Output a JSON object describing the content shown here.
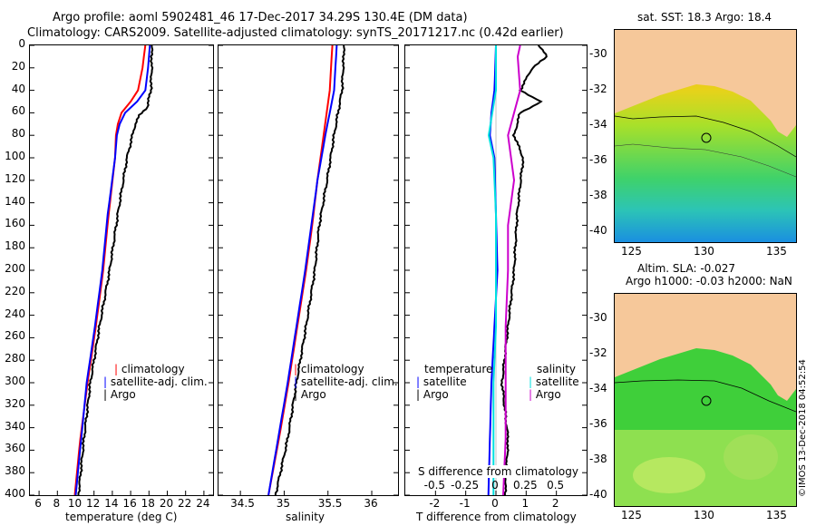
{
  "header": {
    "line1": "Argo profile: aoml 5902481_46 17-Dec-2017 34.29S 130.4E (DM data)",
    "line2": "Climatology: CARS2009. Satellite-adjusted climatology: synTS_20171217.nc (0.42d earlier)"
  },
  "colors": {
    "climatology": "#ff0000",
    "satellite": "#0000ff",
    "argo": "#000000",
    "sat_cyan": "#00e0e0",
    "argo_mag": "#cc00cc",
    "land": "#f6c89a"
  },
  "depth_ticks": [
    "0",
    "20",
    "40",
    "60",
    "80",
    "100",
    "120",
    "140",
    "160",
    "180",
    "200",
    "220",
    "240",
    "260",
    "280",
    "300",
    "320",
    "340",
    "360",
    "380",
    "400"
  ],
  "chart_data": [
    {
      "type": "line",
      "panel": "temperature",
      "xlabel": "temperature (deg C)",
      "ylabel": "depth",
      "xlim": [
        5,
        25
      ],
      "ylim": [
        400,
        0
      ],
      "x_ticks": [
        "6",
        "8",
        "10",
        "12",
        "14",
        "16",
        "18",
        "20",
        "22",
        "24"
      ],
      "legend": [
        "climatology",
        "satellite-adj. clim.",
        "Argo"
      ],
      "series": [
        {
          "name": "climatology",
          "depth": [
            0,
            20,
            40,
            50,
            60,
            70,
            80,
            100,
            150,
            200,
            250,
            300,
            350,
            400
          ],
          "values": [
            17.6,
            17.3,
            16.8,
            16.0,
            15.0,
            14.6,
            14.4,
            14.3,
            13.6,
            13.0,
            12.2,
            11.3,
            10.5,
            9.9
          ]
        },
        {
          "name": "satellite-adj. clim.",
          "depth": [
            0,
            20,
            40,
            50,
            60,
            70,
            80,
            100,
            150,
            200,
            250,
            300,
            350,
            400
          ],
          "values": [
            18.1,
            17.9,
            17.6,
            16.7,
            15.4,
            14.8,
            14.5,
            14.3,
            13.5,
            12.9,
            12.1,
            11.2,
            10.6,
            10.0
          ]
        },
        {
          "name": "Argo",
          "depth": [
            0,
            20,
            40,
            55,
            62,
            70,
            80,
            100,
            120,
            150,
            200,
            250,
            300,
            350,
            400
          ],
          "values": [
            18.3,
            18.3,
            18.2,
            17.8,
            17.0,
            16.5,
            16.2,
            15.6,
            15.2,
            14.6,
            13.7,
            12.6,
            11.6,
            10.9,
            10.3
          ]
        }
      ]
    },
    {
      "type": "line",
      "panel": "salinity",
      "xlabel": "salinity",
      "ylabel": "depth",
      "xlim": [
        34.25,
        36.3
      ],
      "ylim": [
        400,
        0
      ],
      "x_ticks": [
        "34.5",
        "35",
        "35.5",
        "36"
      ],
      "legend": [
        "climatology",
        "satellite-adj. clim.",
        "Argo"
      ],
      "series": [
        {
          "name": "climatology",
          "depth": [
            0,
            40,
            80,
            120,
            160,
            200,
            250,
            300,
            350,
            400
          ],
          "values": [
            35.55,
            35.52,
            35.45,
            35.38,
            35.32,
            35.25,
            35.15,
            35.05,
            34.94,
            34.82
          ]
        },
        {
          "name": "satellite-adj. clim.",
          "depth": [
            0,
            40,
            80,
            120,
            160,
            200,
            250,
            300,
            350,
            400
          ],
          "values": [
            35.6,
            35.57,
            35.47,
            35.38,
            35.31,
            35.24,
            35.14,
            35.04,
            34.93,
            34.82
          ]
        },
        {
          "name": "Argo",
          "depth": [
            0,
            10,
            40,
            80,
            120,
            160,
            200,
            250,
            300,
            350,
            400
          ],
          "values": [
            35.68,
            35.68,
            35.66,
            35.57,
            35.49,
            35.4,
            35.35,
            35.25,
            35.14,
            35.04,
            34.9
          ]
        }
      ]
    },
    {
      "type": "line",
      "panel": "difference",
      "xlabel": "T difference from climatology",
      "top_axis_label": "S difference from climatology",
      "ylabel": "depth",
      "xlim": [
        -3,
        3
      ],
      "ylim": [
        400,
        0
      ],
      "x_ticks": [
        "-2",
        "-1",
        "0",
        "1",
        "2"
      ],
      "s_ticks": [
        "-0.5",
        "-0.25",
        "0",
        "0.25",
        "0.5"
      ],
      "legend_temperature": {
        "title": "temperature",
        "items": [
          "satellite",
          "Argo"
        ]
      },
      "legend_salinity": {
        "title": "salinity",
        "items": [
          "satellite",
          "Argo"
        ]
      },
      "series": [
        {
          "name": "temperature satellite",
          "depth": [
            0,
            40,
            60,
            80,
            100,
            150,
            200,
            250,
            300,
            350,
            400
          ],
          "values": [
            0.0,
            -0.05,
            -0.15,
            -0.2,
            -0.05,
            0.0,
            0.05,
            -0.05,
            -0.15,
            -0.2,
            -0.25
          ]
        },
        {
          "name": "temperature Argo",
          "depth": [
            0,
            10,
            20,
            40,
            50,
            60,
            80,
            100,
            150,
            200,
            250,
            300,
            350,
            400
          ],
          "values": [
            1.4,
            1.7,
            1.2,
            0.8,
            1.5,
            0.8,
            0.6,
            0.9,
            0.7,
            0.6,
            0.4,
            0.2,
            0.4,
            0.3
          ]
        },
        {
          "name": "salinity satellite",
          "depth": [
            0,
            40,
            60,
            80,
            100,
            150,
            200,
            250,
            300,
            350,
            400
          ],
          "values": [
            0.0,
            0.0,
            -0.03,
            -0.06,
            -0.02,
            0.0,
            0.0,
            0.0,
            -0.02,
            -0.02,
            -0.02
          ]
        },
        {
          "name": "salinity Argo",
          "depth": [
            0,
            10,
            40,
            80,
            120,
            160,
            200,
            250,
            300,
            350,
            400
          ],
          "values": [
            0.2,
            0.18,
            0.2,
            0.1,
            0.15,
            0.1,
            0.1,
            0.08,
            0.08,
            0.08,
            0.06
          ]
        }
      ]
    }
  ],
  "maps": {
    "sst": {
      "title": "sat. SST: 18.3 Argo: 18.4",
      "lat_ticks": [
        "-30",
        "-32",
        "-34",
        "-36",
        "-38",
        "-40"
      ],
      "lon_ticks": [
        "125",
        "130",
        "135"
      ]
    },
    "sla": {
      "title_line1": "Altim. SLA: -0.027",
      "title_line2": "Argo h1000: -0.03 h2000: NaN",
      "lat_ticks": [
        "-30",
        "-32",
        "-34",
        "-36",
        "-38",
        "-40"
      ],
      "lon_ticks": [
        "125",
        "130",
        "135"
      ]
    }
  },
  "credit": "©IMOS 13-Dec-2018 04:52:54"
}
